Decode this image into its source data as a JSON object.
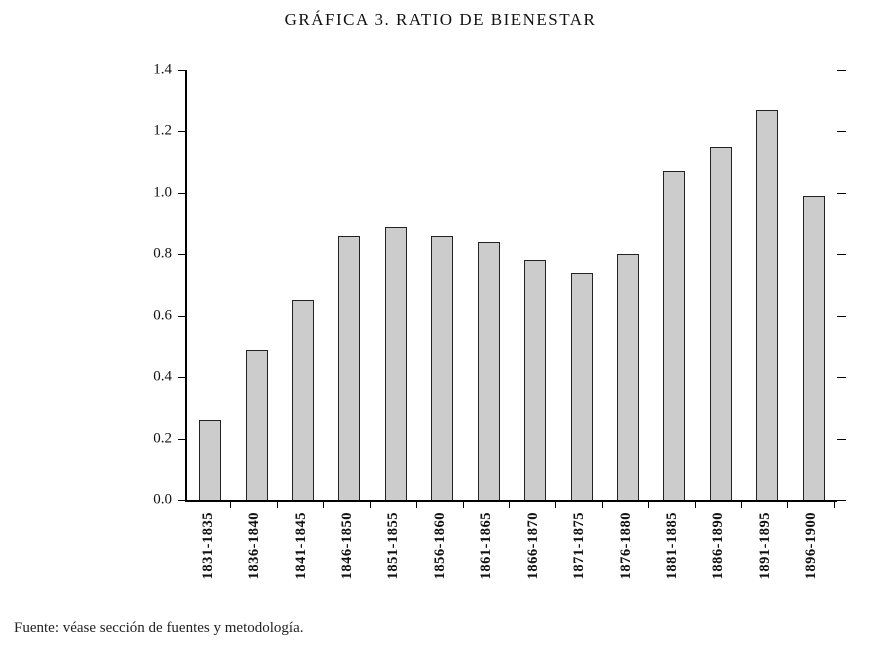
{
  "title": "GRÁFICA 3. RATIO DE BIENESTAR",
  "source_note": "Fuente: véase sección de fuentes y metodología.",
  "chart_data": {
    "type": "bar",
    "title": "GRÁFICA 3. RATIO DE BIENESTAR",
    "categories": [
      "1831-1835",
      "1836-1840",
      "1841-1845",
      "1846-1850",
      "1851-1855",
      "1856-1860",
      "1861-1865",
      "1866-1870",
      "1871-1875",
      "1876-1880",
      "1881-1885",
      "1886-1890",
      "1891-1895",
      "1896-1900"
    ],
    "values": [
      0.26,
      0.49,
      0.65,
      0.86,
      0.89,
      0.86,
      0.84,
      0.78,
      0.74,
      0.8,
      1.07,
      1.15,
      1.27,
      0.99
    ],
    "xlabel": "",
    "ylabel": "",
    "ylim": [
      0,
      1.4
    ],
    "yticks": [
      0.0,
      0.2,
      0.4,
      0.6,
      0.8,
      1.0,
      1.2,
      1.4
    ],
    "grid": false,
    "legend": false,
    "bar_color": "#cccccc",
    "bar_border_color": "#222222",
    "axis_color": "#000000"
  }
}
